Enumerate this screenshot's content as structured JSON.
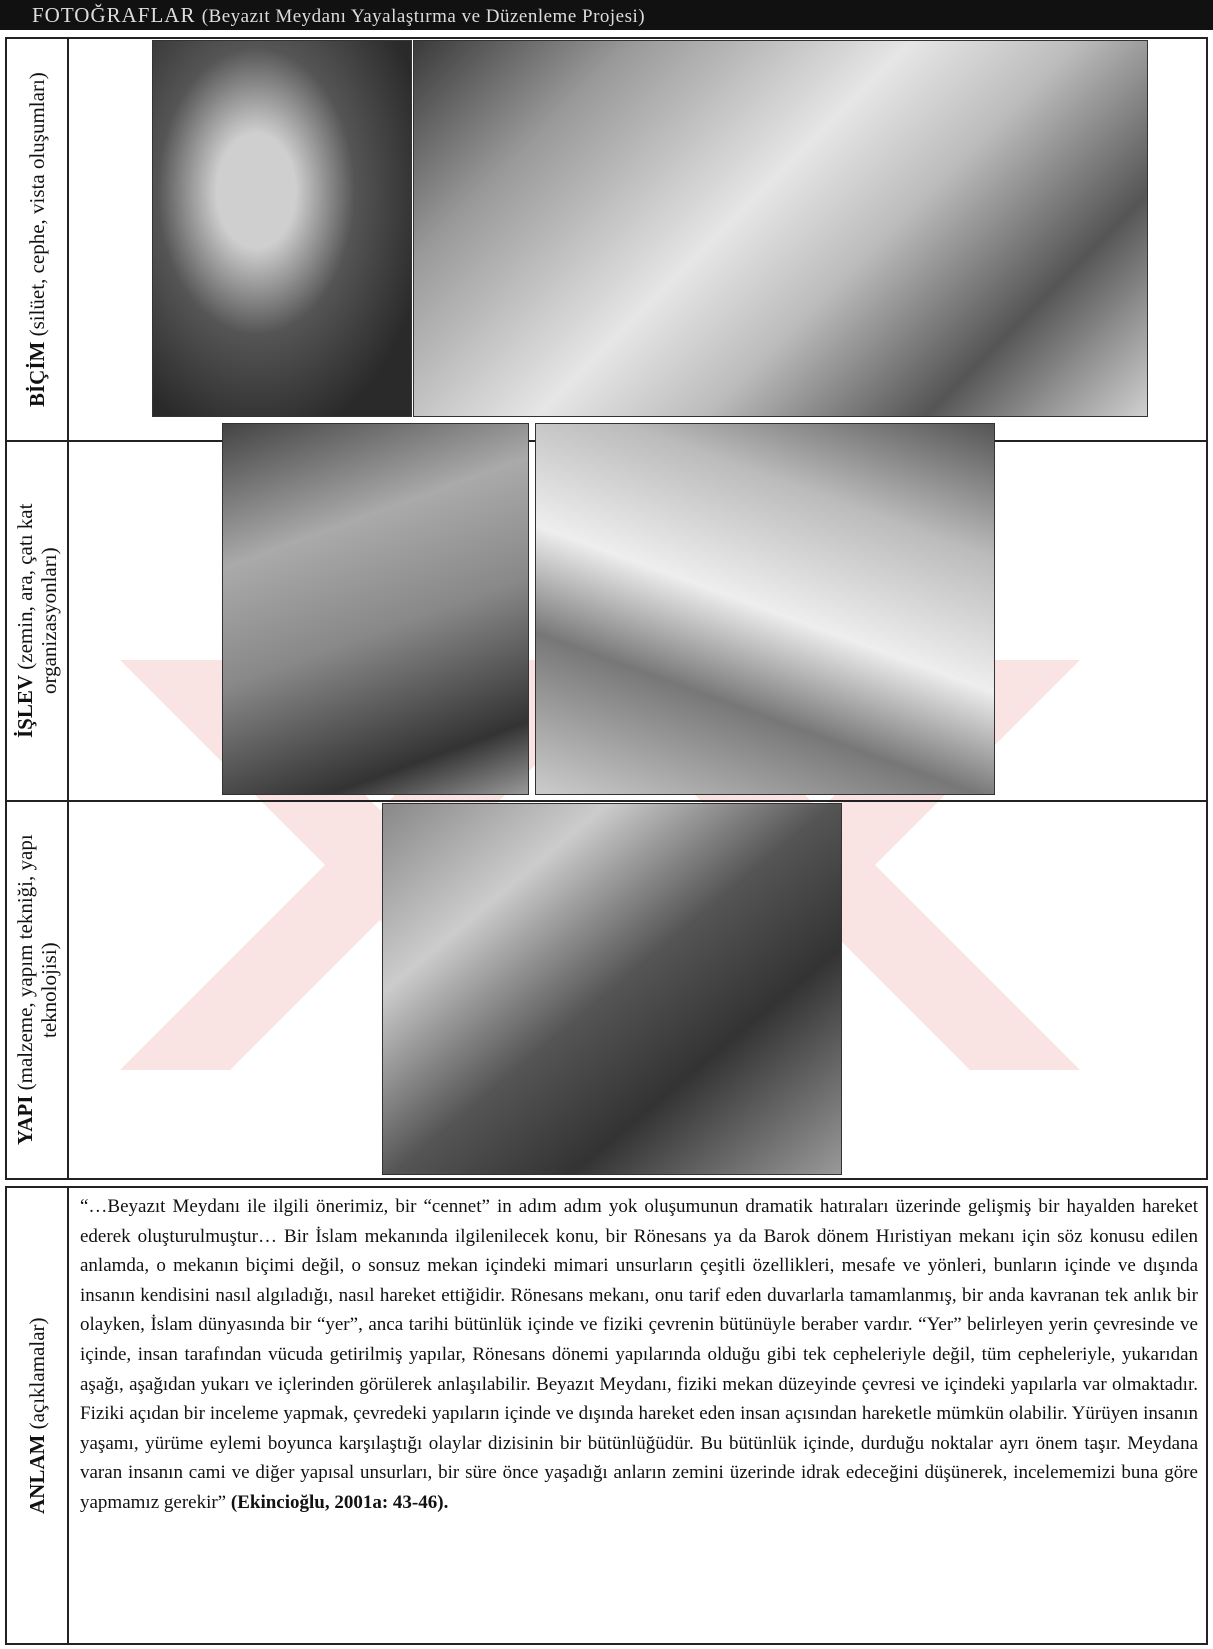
{
  "header": {
    "title": "FOTOĞRAFLAR",
    "subtitle": "(Beyazıt Meydanı Yayalaştırma ve Düzenleme Projesi)"
  },
  "rows": [
    {
      "label": "BİÇİM",
      "detail": "(silüet, cephe, vista oluşumları)"
    },
    {
      "label": "İŞLEV",
      "detail": "(zemin, ara, çatı kat organizasyonları)"
    },
    {
      "label": "YAPI",
      "detail": "(malzeme, yapım tekniği, yapı teknolojisi)"
    },
    {
      "label": "ANLAM",
      "detail": "(açıklamalar)"
    }
  ],
  "quote": {
    "text": "“…Beyazıt Meydanı ile ilgili önerimiz, bir “cennet” in adım adım yok oluşumunun dramatik hatıraları üzerinde gelişmiş bir hayalden hareket ederek oluşturulmuştur… Bir İslam mekanında ilgilenilecek konu, bir Rönesans ya da Barok dönem Hıristiyan mekanı için söz konusu edilen anlamda, o mekanın biçimi değil, o sonsuz mekan içindeki mimari unsurların çeşitli özellikleri, mesafe ve yönleri, bunların içinde ve dışında insanın kendisini nasıl algıladığı, nasıl hareket ettiğidir. Rönesans mekanı, onu tarif eden duvarlarla tamamlanmış, bir anda kavranan tek anlık bir olayken, İslam dünyasında bir “yer”, anca tarihi bütünlük içinde ve fiziki çevrenin bütünüyle beraber vardır. “Yer” belirleyen yerin çevresinde ve içinde, insan tarafından vücuda getirilmiş yapılar, Rönesans dönemi yapılarında olduğu gibi tek cepheleriyle değil, tüm cepheleriyle, yukarıdan aşağı, aşağıdan yukarı ve içlerinden görülerek anlaşılabilir. Beyazıt Meydanı, fiziki mekan düzeyinde çevresi ve içindeki yapılarla var olmaktadır. Fiziki açıdan bir inceleme yapmak, çevredeki yapıların içinde ve dışında hareket eden insan açısından hareketle mümkün olabilir. Yürüyen insanın yaşamı, yürüme eylemi boyunca karşılaştığı olaylar dizisinin bir bütünlüğüdür. Bu bütünlük içinde, durduğu noktalar ayrı önem taşır. Meydana varan insanın cami ve diğer yapısal unsurları, bir süre önce yaşadığı anların zemini üzerinde idrak edeceğini düşünerek, incelememizi buna göre yapmamız gerekir”",
    "citation": "(Ekincioğlu, 2001a: 43-46)."
  }
}
